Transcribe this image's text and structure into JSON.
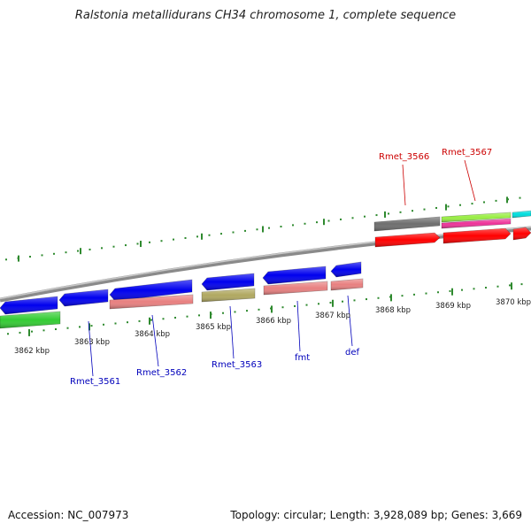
{
  "title": "Ralstonia metallidurans CH34 chromosome 1, complete sequence",
  "accession": "Accession: NC_007973",
  "summary": "Topology: circular; Length: 3,928,089 bp; Genes: 3,669",
  "colors": {
    "forward_label": "#cc0000",
    "reverse_label": "#0000bb",
    "backbone": "#8a8a8a",
    "ticks": "#2f8a2f"
  },
  "kbp_labels": [
    "3862 kbp",
    "3863 kbp",
    "3864 kbp",
    "3865 kbp",
    "3866 kbp",
    "3867 kbp",
    "3868 kbp",
    "3869 kbp",
    "3870 kbp"
  ],
  "gene_labels": {
    "reverse": [
      "Rmet_3561",
      "Rmet_3562",
      "Rmet_3563",
      "fmt",
      "def"
    ],
    "forward": [
      "Rmet_3566",
      "Rmet_3567"
    ]
  },
  "features": [
    {
      "color": "#0000ee",
      "strand": "reverse"
    },
    {
      "color": "#0000ee",
      "strand": "reverse"
    },
    {
      "color": "#0000ee",
      "strand": "reverse"
    },
    {
      "color": "#0000ee",
      "strand": "reverse"
    },
    {
      "color": "#0000ee",
      "strand": "reverse"
    },
    {
      "color": "#0000ee",
      "strand": "reverse"
    },
    {
      "color": "#33cc33",
      "strand": "none"
    },
    {
      "color": "#e88080",
      "strand": "none"
    },
    {
      "color": "#b0a860",
      "strand": "none"
    },
    {
      "color": "#e88080",
      "strand": "none"
    },
    {
      "color": "#e88080",
      "strand": "none"
    },
    {
      "color": "#6e6e6e",
      "strand": "none"
    },
    {
      "color": "#99ee44",
      "strand": "none"
    },
    {
      "color": "#ee3399",
      "strand": "none"
    },
    {
      "color": "#00dddd",
      "strand": "none"
    },
    {
      "color": "#ff0000",
      "strand": "forward"
    },
    {
      "color": "#ff0000",
      "strand": "forward"
    },
    {
      "color": "#ff0000",
      "strand": "forward"
    }
  ]
}
